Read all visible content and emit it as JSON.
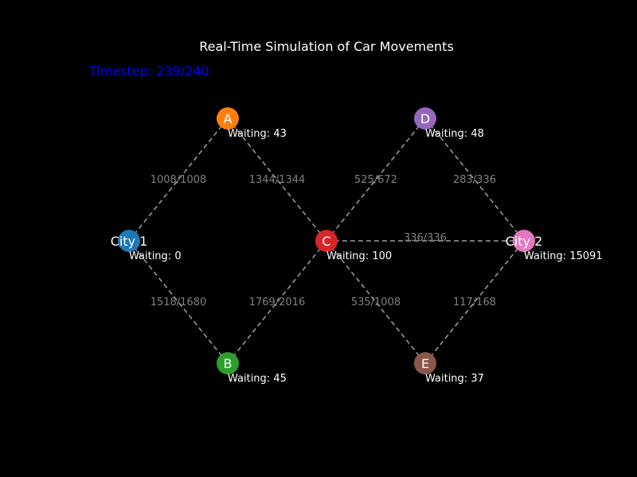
{
  "title": "Real-Time Simulation of Car Movements",
  "timestep": "Timestep: 239/240",
  "nodes": [
    {
      "id": "city1",
      "label": "City 1",
      "waiting": "Waiting: 0",
      "color": "#1f77b4"
    },
    {
      "id": "a",
      "label": "A",
      "waiting": "Waiting: 43",
      "color": "#ff7f0e"
    },
    {
      "id": "b",
      "label": "B",
      "waiting": "Waiting: 45",
      "color": "#2ca02c"
    },
    {
      "id": "c",
      "label": "C",
      "waiting": "Waiting: 100",
      "color": "#d62728"
    },
    {
      "id": "d",
      "label": "D",
      "waiting": "Waiting: 48",
      "color": "#9467bd"
    },
    {
      "id": "e",
      "label": "E",
      "waiting": "Waiting: 37",
      "color": "#8c564b"
    },
    {
      "id": "city2",
      "label": "City 2",
      "waiting": "Waiting: 15091",
      "color": "#e377c2"
    }
  ],
  "edges": [
    {
      "from": "city1",
      "to": "a",
      "label": "1008/1008"
    },
    {
      "from": "city1",
      "to": "b",
      "label": "1518/1680"
    },
    {
      "from": "a",
      "to": "c",
      "label": "1344/1344"
    },
    {
      "from": "b",
      "to": "c",
      "label": "1769/2016"
    },
    {
      "from": "c",
      "to": "d",
      "label": "525/672"
    },
    {
      "from": "c",
      "to": "e",
      "label": "535/1008"
    },
    {
      "from": "c",
      "to": "city2",
      "label": "336/336"
    },
    {
      "from": "d",
      "to": "city2",
      "label": "283/336"
    },
    {
      "from": "e",
      "to": "city2",
      "label": "117/168"
    }
  ]
}
